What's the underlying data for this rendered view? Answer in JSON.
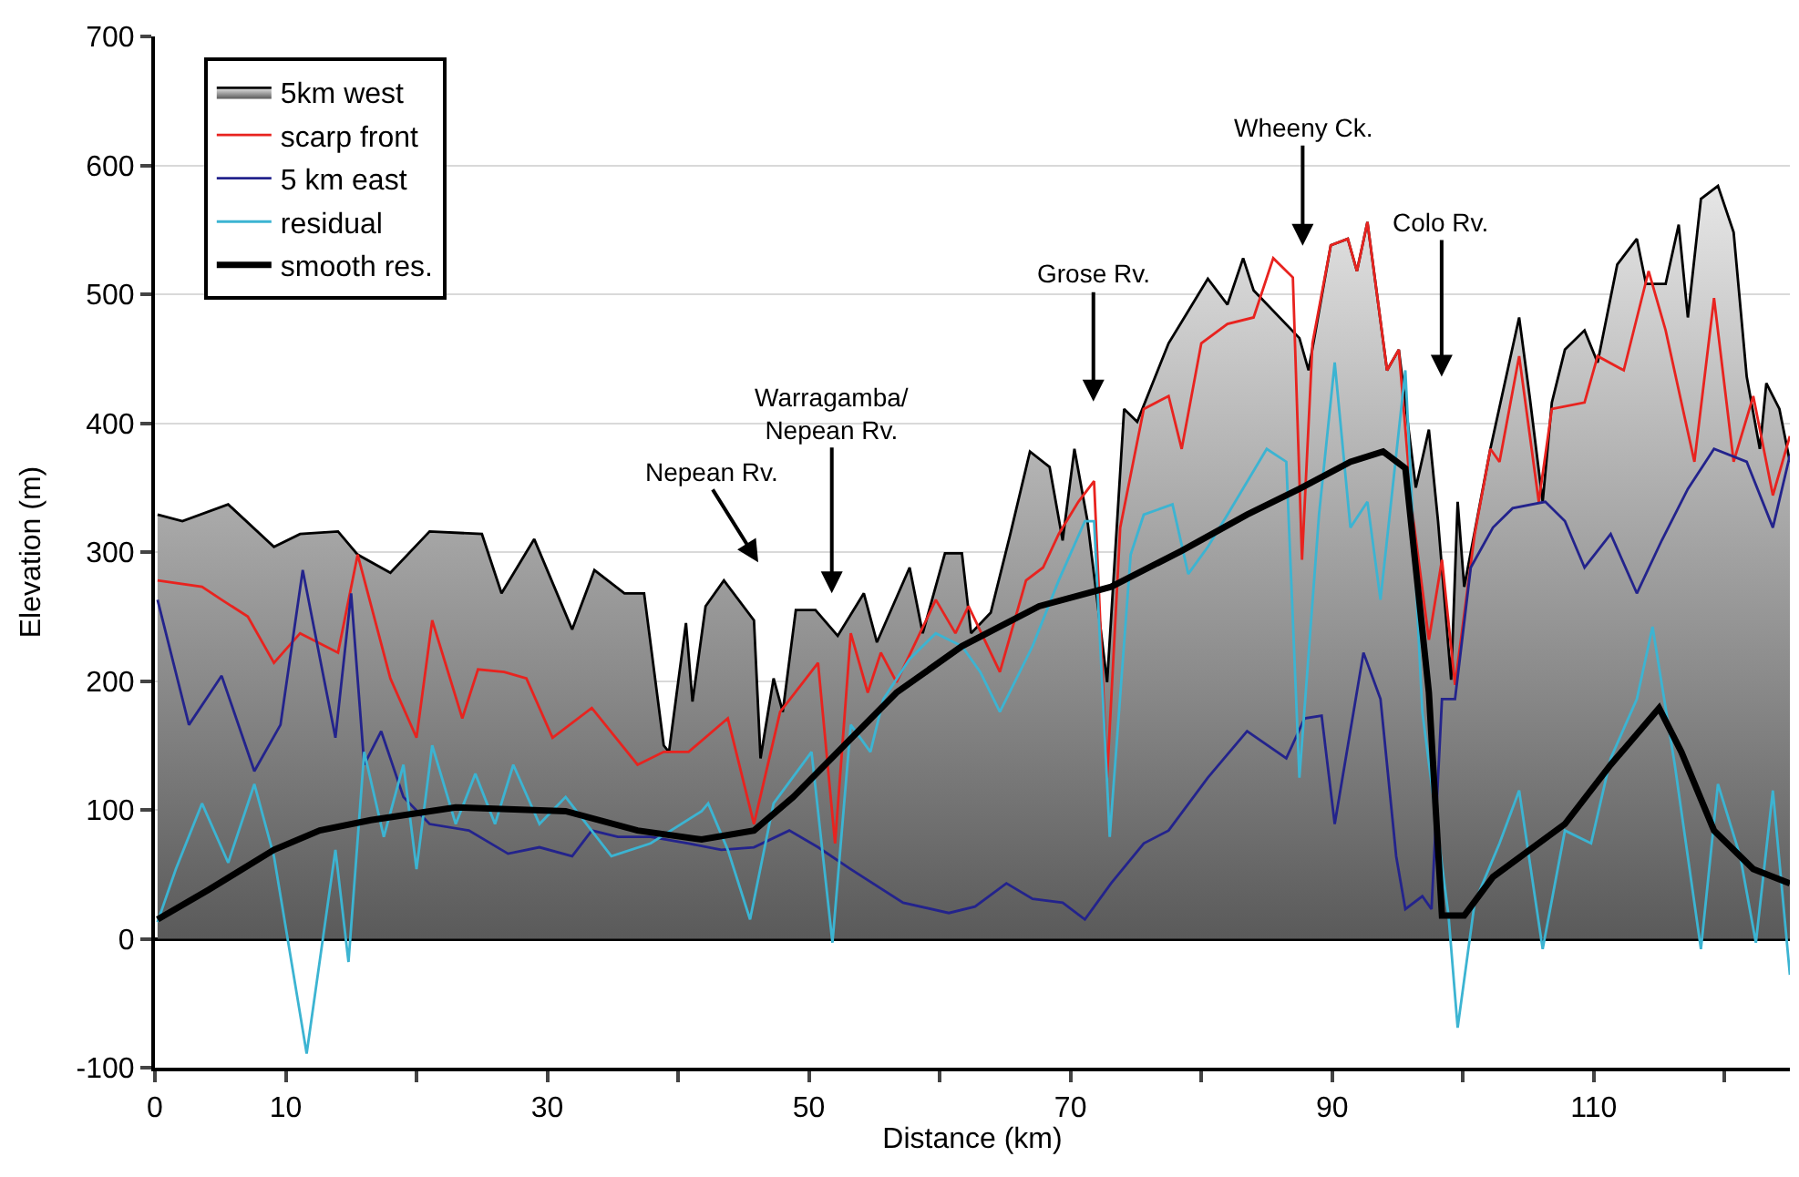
{
  "chart_data": {
    "type": "line",
    "xlabel": "Distance (km)",
    "ylabel": "Elevation (m)",
    "xlim": [
      0,
      125
    ],
    "ylim": [
      -100,
      700
    ],
    "xticks": [
      0,
      10,
      {
        "value": 20,
        "label": null
      },
      30,
      {
        "value": 40,
        "label": null
      },
      50,
      {
        "value": 60,
        "label": null
      },
      70,
      {
        "value": 80,
        "label": null
      },
      90,
      {
        "value": 100,
        "label": null
      },
      110,
      {
        "value": 120,
        "label": null
      }
    ],
    "yticks": [
      -100,
      0,
      100,
      200,
      300,
      400,
      500,
      600,
      700
    ],
    "grid": "y",
    "legend": "top left",
    "marker": "none",
    "line_style": "solid",
    "series": [
      {
        "name": "5km west",
        "type": "area",
        "color": "#000000",
        "x": [
          0.2,
          2.1,
          5.6,
          9.1,
          11.1,
          14,
          15.5,
          18,
          21,
          25,
          26.5,
          29,
          31.9,
          33.6,
          35.9,
          37.4,
          38.9,
          39.3,
          40.6,
          41.1,
          42.1,
          43.5,
          45.8,
          46.3,
          47.3,
          48,
          49,
          50.5,
          52.2,
          54.2,
          55.2,
          57.7,
          58.7,
          60.4,
          61.7,
          62.4,
          63.9,
          65.4,
          66.9,
          68.4,
          69.4,
          70.3,
          71.3,
          72.8,
          74.1,
          75.1,
          77.5,
          79,
          80.5,
          82,
          83.2,
          84,
          87.5,
          88.2,
          89.9,
          91.2,
          91.9,
          92.7,
          94.2,
          95.1,
          96.4,
          97.4,
          98.1,
          99.1,
          99.6,
          100.1,
          102.1,
          104.3,
          105.1,
          106.1,
          106.8,
          107.8,
          109.3,
          110.3,
          111.8,
          113.3,
          114,
          115.5,
          116.5,
          117.2,
          118.2,
          119.5,
          120.7,
          121.7,
          122.7,
          123.2,
          124.2,
          125
        ],
        "values": [
          329,
          324,
          337,
          304,
          314,
          316,
          298,
          284,
          316,
          314,
          268,
          310,
          240,
          286,
          268,
          268,
          150,
          145,
          245,
          184,
          258,
          278,
          247,
          140,
          202,
          176,
          255,
          255,
          235,
          268,
          230,
          288,
          237,
          299,
          299,
          237,
          253,
          314,
          378,
          366,
          309,
          380,
          324,
          199,
          411,
          401,
          462,
          487,
          512,
          492,
          528,
          503,
          466,
          441,
          538,
          543,
          518,
          556,
          441,
          457,
          350,
          395,
          324,
          201,
          339,
          273,
          380,
          482,
          421,
          339,
          416,
          457,
          472,
          447,
          523,
          543,
          508,
          508,
          554,
          482,
          574,
          584,
          548,
          436,
          380,
          431,
          411,
          370
        ]
      },
      {
        "name": "scarp front",
        "color": "#e8231f",
        "x": [
          0.2,
          3.6,
          5.1,
          7.1,
          9.1,
          11.1,
          14,
          15.5,
          18,
          20,
          21.2,
          23.5,
          24.7,
          26.7,
          28.4,
          30.4,
          33.4,
          36.9,
          38.9,
          40.8,
          43.8,
          45.8,
          47.8,
          50.7,
          52,
          53.2,
          54.5,
          55.5,
          56.7,
          59.7,
          61.2,
          62.2,
          64.6,
          66.6,
          67.9,
          69.1,
          70.6,
          71.8,
          72.8,
          73.8,
          75.6,
          77.5,
          78.5,
          80,
          82,
          84,
          85.5,
          87,
          87.7,
          88.5,
          89.9,
          91.2,
          91.9,
          92.7,
          94.2,
          95.1,
          96.1,
          97.4,
          98.4,
          99.4,
          100.9,
          102.1,
          102.8,
          104.3,
          105.8,
          106.8,
          109.3,
          110.3,
          112.3,
          114.2,
          115.5,
          117.7,
          119.2,
          120.7,
          122.2,
          123.7,
          125
        ],
        "values": [
          278,
          273,
          263,
          250,
          214,
          237,
          222,
          298,
          202,
          156,
          247,
          171,
          209,
          207,
          202,
          156,
          179,
          135,
          145,
          145,
          171,
          89,
          176,
          214,
          74,
          237,
          191,
          222,
          199,
          263,
          237,
          258,
          207,
          278,
          288,
          314,
          339,
          355,
          125,
          319,
          411,
          421,
          380,
          462,
          477,
          482,
          528,
          513,
          294,
          462,
          538,
          543,
          518,
          556,
          441,
          457,
          334,
          232,
          294,
          197,
          314,
          380,
          370,
          452,
          339,
          411,
          416,
          452,
          441,
          518,
          472,
          370,
          497,
          370,
          421,
          344,
          390
        ]
      },
      {
        "name": "5 km east",
        "color": "#23238c",
        "x": [
          0.2,
          2.6,
          5.1,
          7.6,
          9.6,
          11.3,
          13.8,
          15,
          16,
          17.3,
          19,
          21,
          24,
          27,
          29.4,
          31.9,
          33.4,
          35.4,
          37.9,
          40.8,
          43.3,
          45.8,
          48.5,
          50.7,
          53.2,
          57.2,
          60.7,
          62.7,
          65.1,
          67.1,
          69.4,
          71.1,
          73.1,
          75.6,
          77.5,
          80.5,
          83.5,
          86.5,
          87.9,
          89.2,
          90.2,
          92.4,
          93.7,
          94.9,
          95.6,
          96.9,
          97.6,
          98.4,
          99.4,
          100.6,
          102.3,
          103.8,
          106.3,
          107.8,
          109.3,
          111.3,
          113.3,
          115.2,
          117.2,
          119.2,
          121.7,
          123.7,
          125
        ],
        "values": [
          263,
          166,
          204,
          130,
          166,
          286,
          156,
          268,
          135,
          161,
          110,
          89,
          84,
          66,
          71,
          64,
          84,
          79,
          79,
          74,
          69,
          71,
          84,
          71,
          54,
          28,
          20,
          25,
          43,
          31,
          28,
          15,
          43,
          74,
          84,
          125,
          161,
          140,
          171,
          173,
          89,
          222,
          186,
          64,
          23,
          33,
          23,
          186,
          186,
          288,
          319,
          334,
          339,
          324,
          288,
          314,
          268,
          309,
          349,
          380,
          370,
          319,
          375
        ]
      },
      {
        "name": "residual",
        "color": "#3cb4d2",
        "x": [
          0.2,
          1.6,
          3.6,
          5.6,
          7.6,
          9.1,
          11.6,
          13.8,
          14.8,
          16,
          17.5,
          19,
          20,
          21.2,
          23,
          24.5,
          26,
          27.4,
          29.4,
          31.4,
          34.9,
          37.9,
          41.8,
          42.3,
          43.8,
          45.5,
          47.3,
          50.2,
          51.8,
          53.2,
          54.7,
          55.7,
          57.7,
          59.7,
          61.7,
          63.1,
          64.6,
          67.1,
          69.1,
          71.1,
          71.8,
          73,
          74.6,
          75.6,
          77.8,
          79,
          80.5,
          82,
          85,
          86.5,
          87.5,
          89,
          90.2,
          91.4,
          92.7,
          93.7,
          95.6,
          96.9,
          98.9,
          99.6,
          100.9,
          102.8,
          104.3,
          106.1,
          107.8,
          109.8,
          111.3,
          113.3,
          114.5,
          116.2,
          118.2,
          119.5,
          121.2,
          122.4,
          123.7,
          125
        ],
        "values": [
          13,
          54,
          105,
          59,
          120,
          64,
          -89,
          69,
          -18,
          145,
          79,
          135,
          54,
          150,
          89,
          128,
          89,
          135,
          89,
          110,
          64,
          74,
          99,
          105,
          69,
          15,
          105,
          145,
          -3,
          166,
          145,
          186,
          217,
          237,
          227,
          207,
          176,
          227,
          278,
          324,
          324,
          79,
          298,
          329,
          337,
          283,
          304,
          329,
          380,
          370,
          125,
          329,
          447,
          319,
          339,
          263,
          441,
          176,
          18,
          -69,
          28,
          74,
          115,
          -8,
          84,
          74,
          140,
          186,
          242,
          135,
          -8,
          120,
          64,
          -3,
          115,
          -28
        ]
      },
      {
        "name": "smooth res.",
        "color": "#000000",
        "x": [
          0.2,
          4.1,
          9.1,
          12.6,
          16.5,
          23,
          31.4,
          36.9,
          41.8,
          45.8,
          48.8,
          52.7,
          56.7,
          61.7,
          67.6,
          73.1,
          78.5,
          83.5,
          87.5,
          91.4,
          93.9,
          95.6,
          97.4,
          98.4,
          100.1,
          102.3,
          107.8,
          111.3,
          115,
          116.7,
          119.2,
          122.2,
          125
        ],
        "values": [
          15,
          38,
          69,
          84,
          92,
          102,
          99,
          84,
          77,
          84,
          110,
          150,
          191,
          227,
          258,
          273,
          301,
          329,
          349,
          370,
          378,
          365,
          191,
          18,
          18,
          48,
          89,
          135,
          179,
          145,
          84,
          54,
          43
        ]
      }
    ],
    "annotations": [
      "Nepean Rv.",
      "Warragamba/\nNepean Rv.",
      "Grose Rv.",
      "Wheeny Ck.",
      "Colo Rv."
    ]
  }
}
